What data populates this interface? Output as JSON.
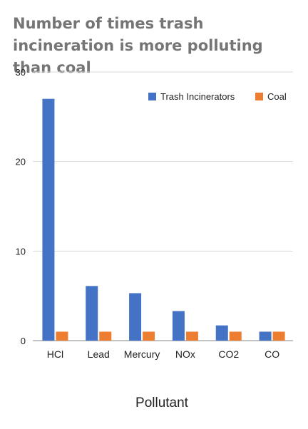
{
  "chart_data": {
    "type": "bar",
    "title": "Number of times trash incineration is more polluting than coal",
    "xlabel": "Pollutant",
    "ylabel": "",
    "ylim": [
      0,
      30
    ],
    "yticks": [
      0,
      10,
      20,
      30
    ],
    "categories": [
      "HCl",
      "Lead",
      "Mercury",
      "NOx",
      "CO2",
      "CO"
    ],
    "series": [
      {
        "name": "Trash Incinerators",
        "color": "#4472C4",
        "values": [
          27,
          6.1,
          5.3,
          3.3,
          1.7,
          1
        ]
      },
      {
        "name": "Coal",
        "color": "#ED7D31",
        "values": [
          1,
          1,
          1,
          1,
          1,
          1
        ]
      }
    ],
    "grid": true,
    "legend_position": "top-right"
  }
}
